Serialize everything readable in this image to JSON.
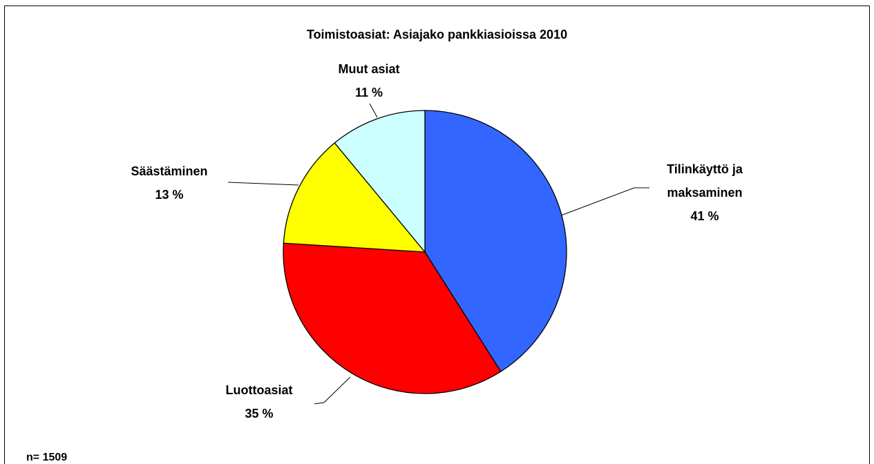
{
  "chart_data": {
    "type": "pie",
    "title": "Toimistoasiat: Asiajako pankkiasioissa 2010",
    "categories": [
      "Tilinkäyttö ja maksaminen",
      "Luottoasiat",
      "Säästäminen",
      "Muut asiat"
    ],
    "values": [
      41,
      35,
      13,
      11
    ],
    "value_labels": [
      "41 %",
      "35 %",
      "13 %",
      "11 %"
    ],
    "colors": [
      "#3366ff",
      "#ff0000",
      "#ffff00",
      "#ccffff"
    ],
    "note": "n= 1509"
  }
}
